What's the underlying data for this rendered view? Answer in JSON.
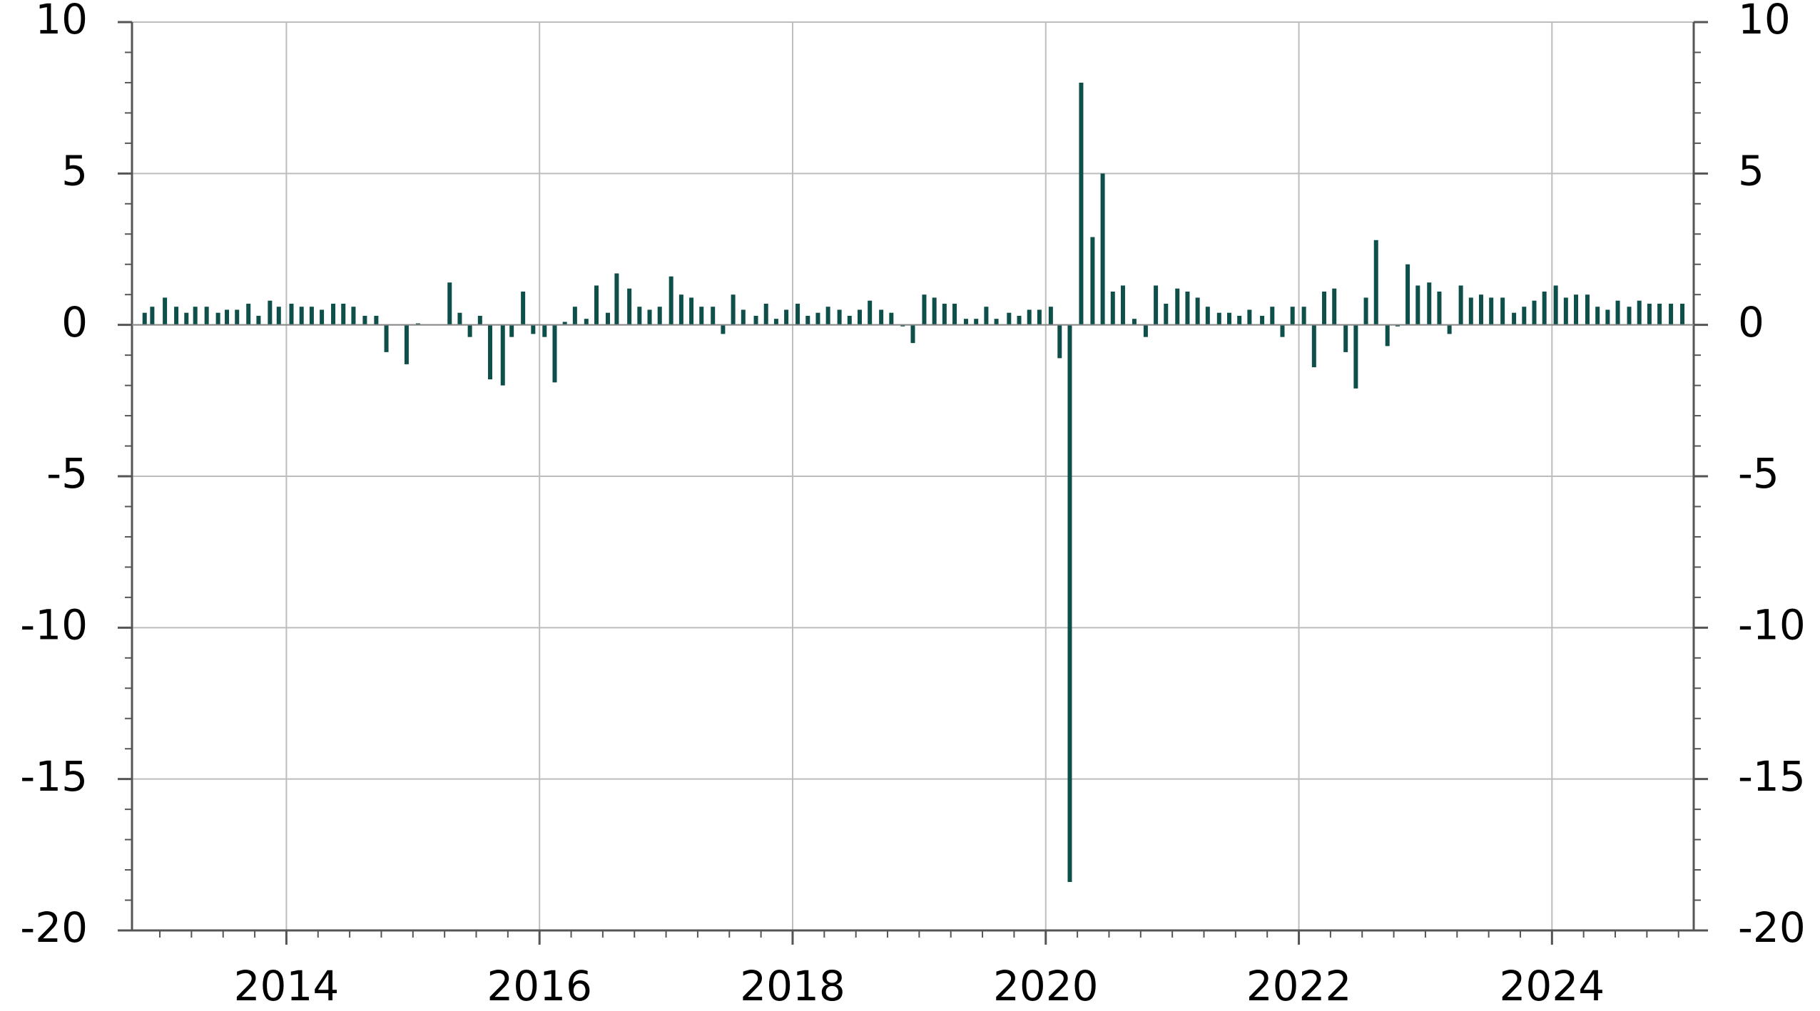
{
  "chart_data": {
    "type": "bar",
    "color": "#0f4f4a",
    "x": [
      2012.88,
      2012.94,
      2013.04,
      2013.13,
      2013.21,
      2013.28,
      2013.37,
      2013.46,
      2013.53,
      2013.61,
      2013.7,
      2013.78,
      2013.87,
      2013.94,
      2014.04,
      2014.12,
      2014.2,
      2014.28,
      2014.37,
      2014.45,
      2014.53,
      2014.62,
      2014.71,
      2014.79,
      2014.87,
      2014.95,
      2015.04,
      2015.12,
      2015.2,
      2015.29,
      2015.37,
      2015.45,
      2015.53,
      2015.61,
      2015.71,
      2015.78,
      2015.87,
      2015.95,
      2016.04,
      2016.12,
      2016.2,
      2016.28,
      2016.37,
      2016.45,
      2016.54,
      2016.61,
      2016.71,
      2016.79,
      2016.87,
      2016.95,
      2017.04,
      2017.12,
      2017.2,
      2017.28,
      2017.37,
      2017.45,
      2017.53,
      2017.61,
      2017.71,
      2017.79,
      2017.87,
      2017.95,
      2018.04,
      2018.12,
      2018.2,
      2018.28,
      2018.37,
      2018.45,
      2018.53,
      2018.61,
      2018.7,
      2018.78,
      2018.87,
      2018.95,
      2019.04,
      2019.12,
      2019.2,
      2019.28,
      2019.37,
      2019.45,
      2019.53,
      2019.61,
      2019.71,
      2019.79,
      2019.87,
      2019.95,
      2020.04,
      2020.11,
      2020.19,
      2020.28,
      2020.37,
      2020.45,
      2020.53,
      2020.61,
      2020.7,
      2020.79,
      2020.87,
      2020.95,
      2021.04,
      2021.12,
      2021.2,
      2021.28,
      2021.37,
      2021.45,
      2021.53,
      2021.61,
      2021.71,
      2021.79,
      2021.87,
      2021.95,
      2022.04,
      2022.12,
      2022.2,
      2022.28,
      2022.37,
      2022.45,
      2022.53,
      2022.61,
      2022.7,
      2022.78,
      2022.86,
      2022.94,
      2023.03,
      2023.11,
      2023.19,
      2023.28,
      2023.36,
      2023.44,
      2023.52,
      2023.61,
      2023.7,
      2023.78,
      2023.86,
      2023.94,
      2024.03,
      2024.11,
      2024.19,
      2024.28,
      2024.36,
      2024.44,
      2024.52,
      2024.61,
      2024.69,
      2024.77,
      2024.85,
      2024.94,
      2025.03
    ],
    "values": [
      0.4,
      0.6,
      0.9,
      0.6,
      0.4,
      0.6,
      0.6,
      0.4,
      0.5,
      0.5,
      0.7,
      0.3,
      0.8,
      0.6,
      0.7,
      0.6,
      0.6,
      0.5,
      0.7,
      0.7,
      0.6,
      0.3,
      0.3,
      -0.9,
      0,
      -1.3,
      0.05,
      0,
      0,
      1.4,
      0.4,
      -0.4,
      0.3,
      -1.8,
      -2.0,
      -0.4,
      1.1,
      -0.3,
      -0.4,
      -1.9,
      0.1,
      0.6,
      0.2,
      1.3,
      0.4,
      1.7,
      1.2,
      0.6,
      0.5,
      0.6,
      1.6,
      1.0,
      0.9,
      0.6,
      0.6,
      -0.3,
      1.0,
      0.5,
      0.3,
      0.7,
      0.2,
      0.5,
      0.7,
      0.3,
      0.4,
      0.6,
      0.5,
      0.3,
      0.5,
      0.8,
      0.5,
      0.4,
      -0.05,
      -0.6,
      1.0,
      0.9,
      0.7,
      0.7,
      0.2,
      0.2,
      0.6,
      0.2,
      0.4,
      0.3,
      0.5,
      0.5,
      0.6,
      -1.1,
      -18.4,
      8.0,
      2.9,
      5.0,
      1.1,
      1.3,
      0.2,
      -0.4,
      1.3,
      0.7,
      1.2,
      1.1,
      0.9,
      0.6,
      0.4,
      0.4,
      0.3,
      0.5,
      0.3,
      0.6,
      -0.4,
      0.6,
      0.6,
      -1.4,
      1.1,
      1.2,
      -0.9,
      -2.1,
      0.9,
      2.8,
      -0.7,
      -0.05,
      2.0,
      1.3,
      1.4,
      1.1,
      -0.3,
      1.3,
      0.9,
      1.0,
      0.9,
      0.9,
      0.4,
      0.6,
      0.8,
      1.1,
      1.3,
      0.9,
      1.0,
      1.0,
      0.6,
      0.5,
      0.8,
      0.6,
      0.8,
      0.7,
      0.7,
      0.7,
      0.7
    ],
    "xlim": [
      2012.78,
      2025.12
    ],
    "xticks": [
      2014,
      2016,
      2018,
      2020,
      2022,
      2024
    ],
    "ylim": [
      -20,
      10
    ],
    "yticks": [
      -20,
      -15,
      -10,
      -5,
      0,
      5,
      10
    ],
    "y2lim": [
      -20,
      10
    ],
    "y2ticks": [
      -20,
      -15,
      -10,
      -5,
      0,
      5,
      10
    ],
    "grid": true,
    "minor_ticks": {
      "x": 0.25,
      "y": 1
    }
  }
}
